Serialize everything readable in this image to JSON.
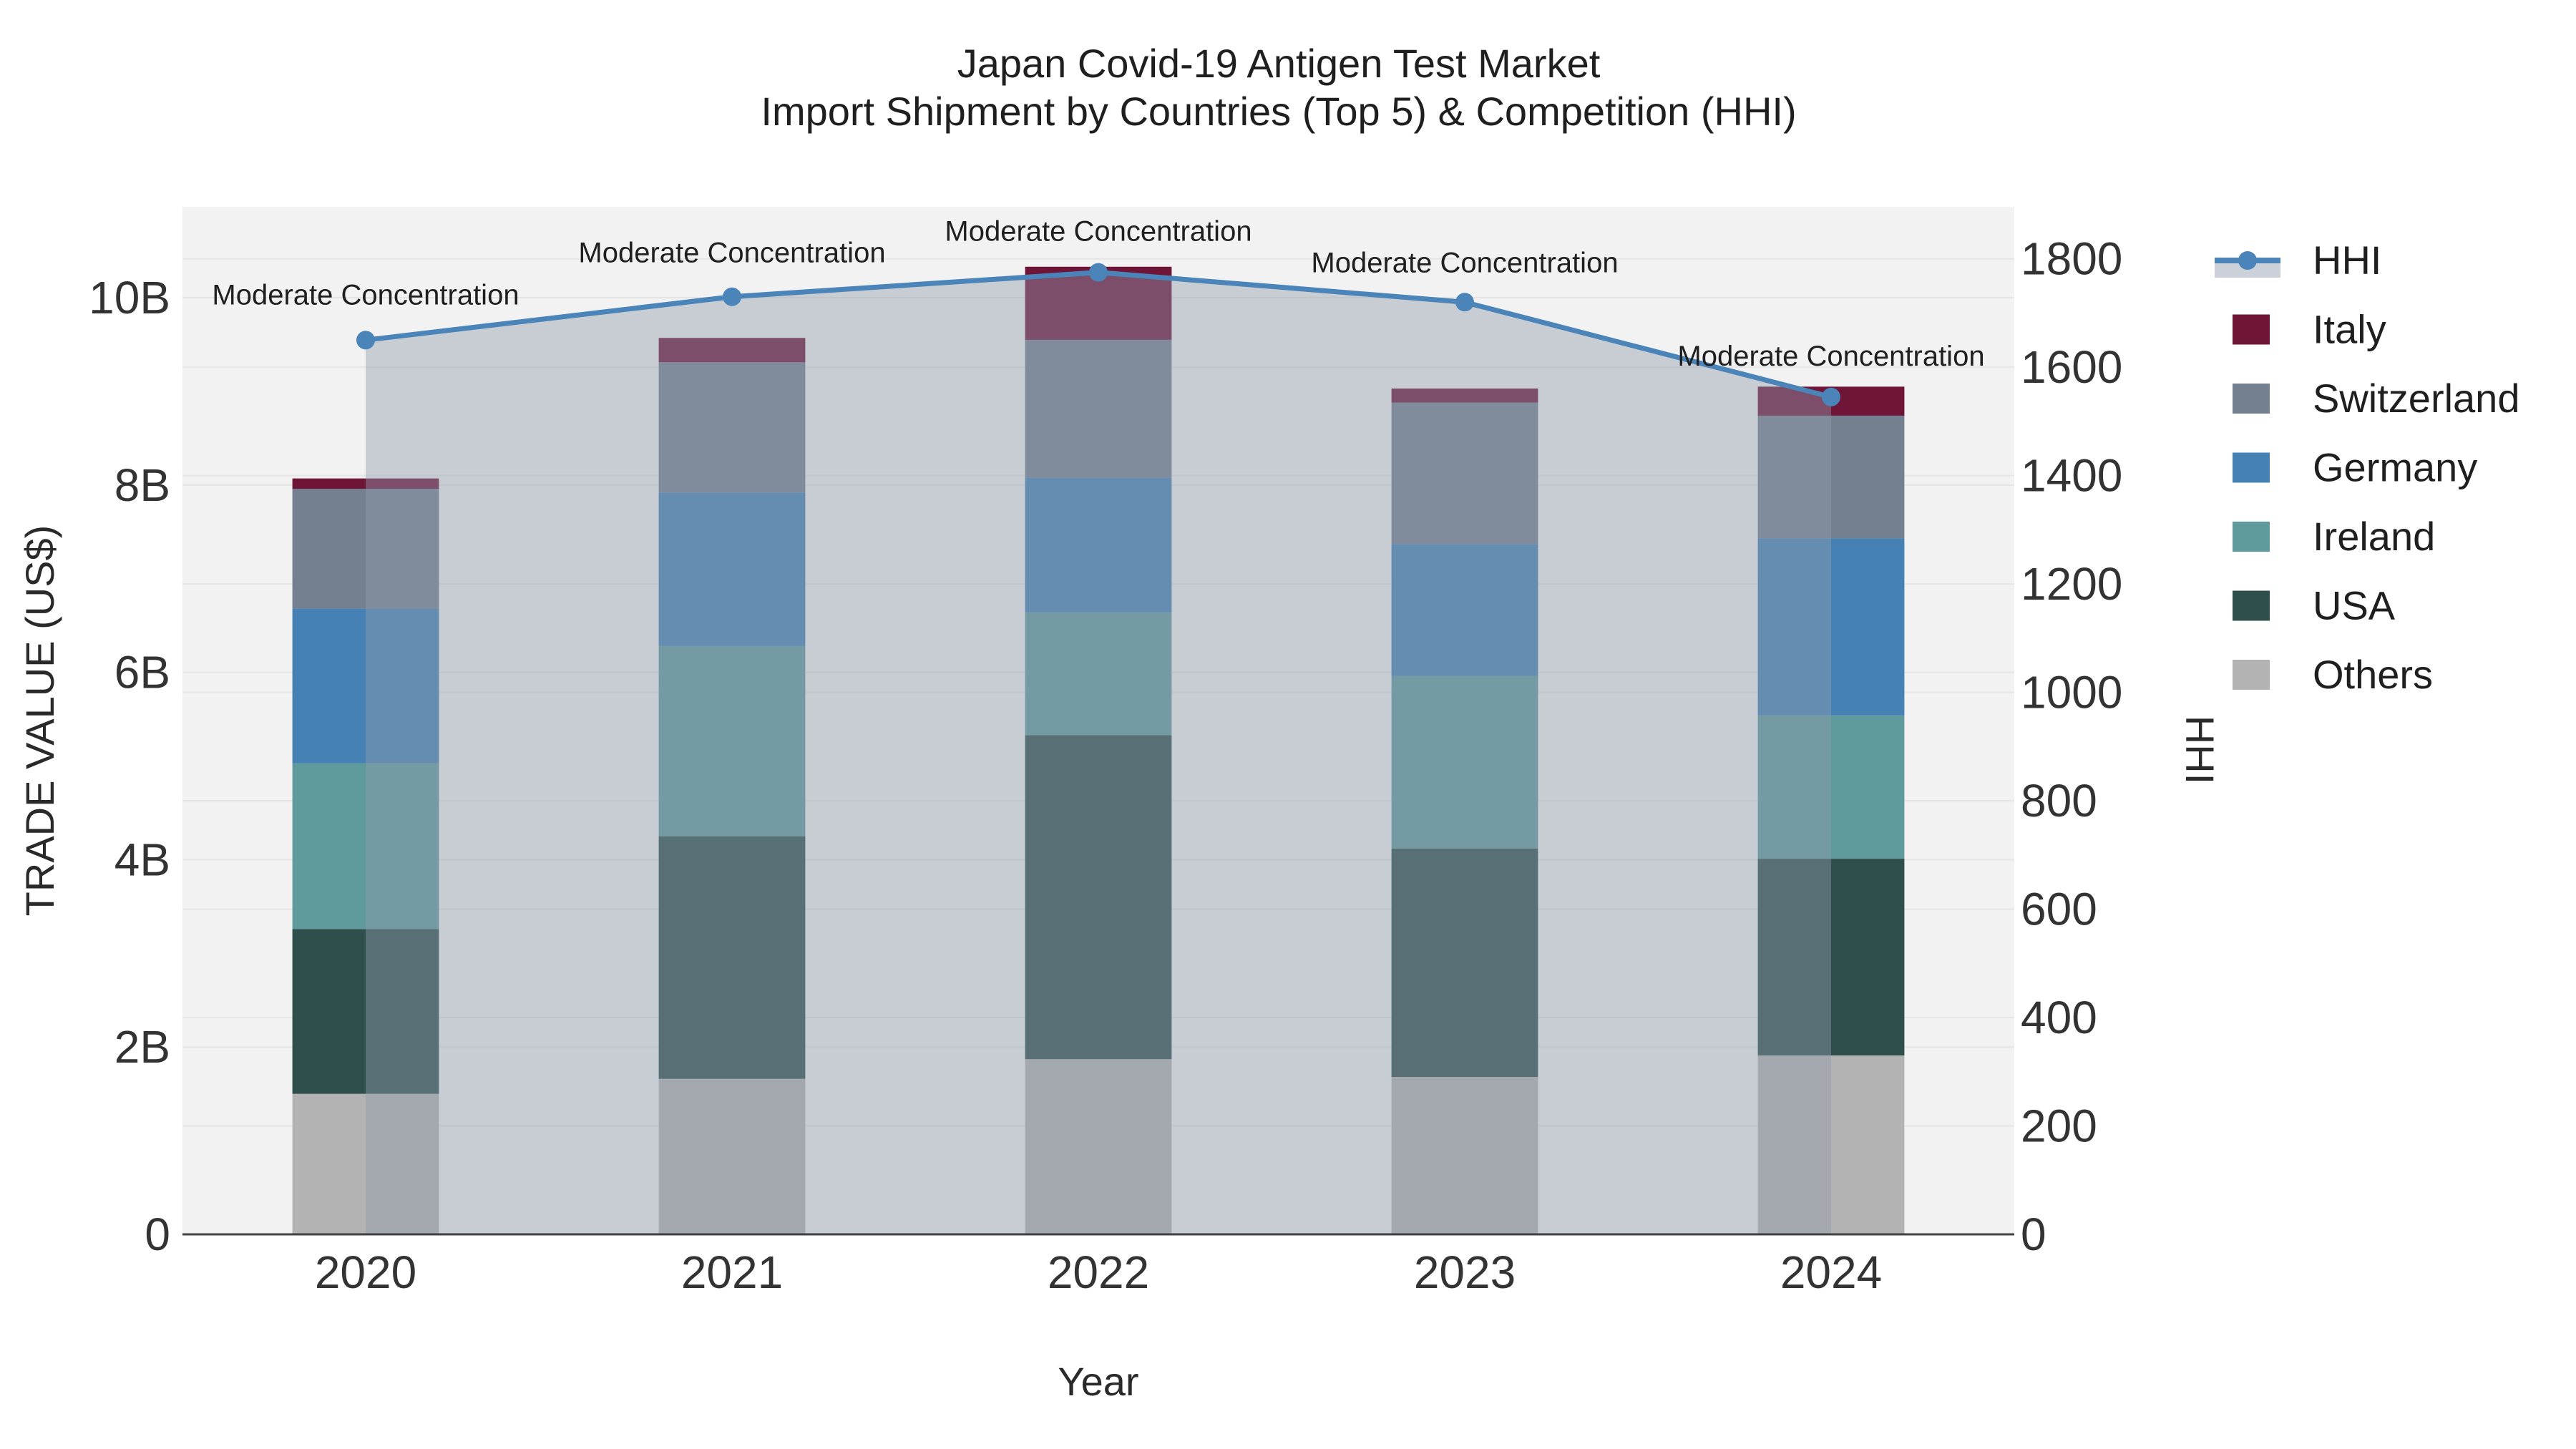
{
  "title": {
    "line1": "Japan Covid-19 Antigen Test Market",
    "line2": "Import Shipment by Countries (Top 5) & Competition (HHI)"
  },
  "axes": {
    "left": {
      "title": "TRADE VALUE (US$)",
      "tick_labels": [
        "0",
        "2B",
        "4B",
        "6B",
        "8B",
        "10B"
      ],
      "tick_values_billion": [
        0,
        2,
        4,
        6,
        8,
        10
      ],
      "range_billion": [
        0,
        10.97
      ]
    },
    "right": {
      "title": "HHI",
      "tick_labels": [
        "0",
        "200",
        "400",
        "600",
        "800",
        "1000",
        "1200",
        "1400",
        "1600",
        "1800"
      ],
      "tick_values": [
        0,
        200,
        400,
        600,
        800,
        1000,
        1200,
        1400,
        1600,
        1800
      ],
      "range": [
        0,
        1896
      ]
    },
    "x": {
      "title": "Year",
      "categories": [
        "2020",
        "2021",
        "2022",
        "2023",
        "2024"
      ]
    }
  },
  "legend": {
    "items": [
      {
        "label": "HHI",
        "swatch": "line-marker",
        "color": "#4a84b8"
      },
      {
        "label": "Italy",
        "swatch": "box",
        "color": "#6e1538"
      },
      {
        "label": "Switzerland",
        "swatch": "box",
        "color": "#74808f"
      },
      {
        "label": "Germany",
        "swatch": "box",
        "color": "#4681b5"
      },
      {
        "label": "Ireland",
        "swatch": "box",
        "color": "#5f9b9d"
      },
      {
        "label": "USA",
        "swatch": "box",
        "color": "#2e4f4c"
      },
      {
        "label": "Others",
        "swatch": "box",
        "color": "#b3b3b3"
      }
    ]
  },
  "annotations": {
    "text": "Moderate Concentration",
    "dy_above_marker": [
      50,
      48,
      44,
      42,
      44
    ]
  },
  "chart_data": {
    "type": "bar",
    "subtype": "stacked-bars-with-line-overlay",
    "title": "Japan Covid-19 Antigen Test Market — Import Shipment by Countries (Top 5) & Competition (HHI)",
    "xlabel": "Year",
    "ylabel_left": "TRADE VALUE (US$)",
    "ylabel_right": "HHI",
    "categories": [
      "2020",
      "2021",
      "2022",
      "2023",
      "2024"
    ],
    "bar_unit": "billion US$",
    "series": [
      {
        "name": "Italy",
        "color": "#6e1538",
        "values": [
          0.11,
          0.26,
          0.78,
          0.15,
          0.31
        ]
      },
      {
        "name": "Switzerland",
        "color": "#74808f",
        "values": [
          1.28,
          1.39,
          1.47,
          1.51,
          1.31
        ]
      },
      {
        "name": "Germany",
        "color": "#4681b5",
        "values": [
          1.65,
          1.64,
          1.44,
          1.41,
          1.89
        ]
      },
      {
        "name": "Ireland",
        "color": "#5f9b9d",
        "values": [
          1.77,
          2.03,
          1.31,
          1.84,
          1.53
        ]
      },
      {
        "name": "USA",
        "color": "#2e4f4c",
        "values": [
          1.76,
          2.59,
          3.46,
          2.44,
          2.1
        ]
      },
      {
        "name": "Others",
        "color": "#b3b3b3",
        "values": [
          1.5,
          1.66,
          1.87,
          1.68,
          1.91
        ]
      }
    ],
    "stack_note": "stacked bottom-to-top as Others, USA, Ireland, Germany, Switzerland, Italy (reverse of series list)",
    "bar_totals_billion": [
      8.07,
      9.57,
      10.33,
      9.03,
      9.05
    ],
    "line_series": {
      "name": "HHI",
      "color": "#4a84b8",
      "axis": "right",
      "values": [
        1650,
        1730,
        1775,
        1720,
        1545
      ],
      "area_fill": "rgba(144,156,172,0.43)",
      "point_labels": [
        "Moderate Concentration",
        "Moderate Concentration",
        "Moderate Concentration",
        "Moderate Concentration",
        "Moderate Concentration"
      ]
    },
    "ylim_left_billion": [
      0,
      10.97
    ],
    "ylim_right": [
      0,
      1896
    ],
    "grid": "horizontal, light, at 2B (left) and 200-HHI (right) intervals",
    "legend_position": "right-outside-top",
    "plot_background": "#f2f2f2"
  },
  "colors": {
    "plot_bg": "#f2f2f2",
    "grid": "#e5e5e5",
    "axis_line": "#424242",
    "hhi_line": "#4a84b8",
    "hhi_area": "rgba(144,156,172,0.43)",
    "hhi_legend_band": "#ccd1d9",
    "text": "#333333"
  }
}
